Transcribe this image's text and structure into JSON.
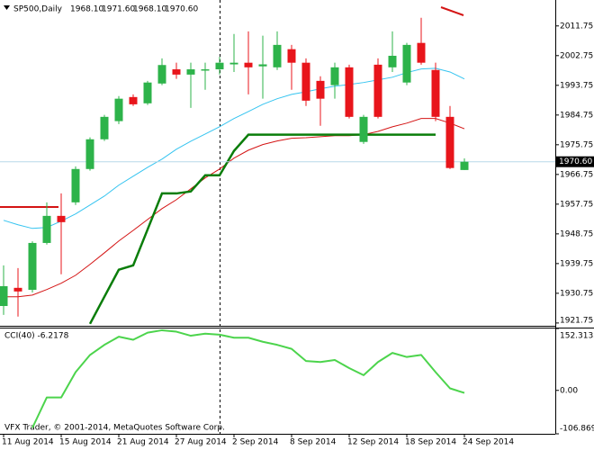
{
  "chart_data": [
    {
      "type": "candlestick",
      "title": "SP500,Daily",
      "ohlc_labels": [
        "1968.10",
        "1971.60",
        "1968.10",
        "1970.60"
      ],
      "categories": [
        "11 Aug 2014",
        null,
        null,
        null,
        "15 Aug 2014",
        null,
        null,
        null,
        "21 Aug 2014",
        null,
        null,
        null,
        "27 Aug 2014",
        null,
        null,
        null,
        "2 Sep 2014",
        null,
        null,
        null,
        "8 Sep 2014",
        null,
        null,
        null,
        "12 Sep 2014",
        null,
        null,
        null,
        "18 Sep 2014",
        null,
        null,
        null,
        "24 Sep 2014"
      ],
      "open": [
        1926.9,
        1932.4,
        1931.8,
        1946.0,
        1954.2,
        1958.3,
        1968.4,
        1977.4,
        1982.9,
        1990.2,
        1988.3,
        1994.3,
        1998.6,
        1997.0,
        1998.2,
        1998.6,
        2000.1,
        2000.6,
        1999.5,
        1999.2,
        2004.7,
        2000.6,
        1995.1,
        1993.8,
        1999.2,
        1976.6,
        2000.0,
        1999.2,
        1994.6,
        2006.6,
        1998.4,
        1984.2,
        1968.1
      ],
      "high": [
        1939.2,
        1938.4,
        1946.5,
        1958.3,
        1961.0,
        1969.2,
        1978.0,
        1984.8,
        1990.5,
        1991.0,
        1995.1,
        2001.9,
        2000.6,
        2000.6,
        2000.6,
        2002.4,
        2009.3,
        2010.1,
        2008.8,
        2010.1,
        2006.0,
        2001.9,
        1996.5,
        2000.6,
        2000.0,
        1984.8,
        2001.9,
        2010.1,
        2006.6,
        2014.2,
        2000.6,
        1987.5,
        1971.6
      ],
      "low": [
        1924.2,
        1923.7,
        1931.0,
        1945.5,
        1936.5,
        1957.5,
        1967.9,
        1976.9,
        1982.0,
        1987.5,
        1987.8,
        1993.8,
        1995.7,
        1986.9,
        1992.4,
        1997.0,
        1997.8,
        1991.0,
        1989.7,
        1998.4,
        1992.4,
        1987.5,
        1981.5,
        1989.7,
        1983.7,
        1976.0,
        1983.7,
        1997.8,
        1993.8,
        2000.0,
        1982.9,
        1968.4,
        1968.1
      ],
      "close": [
        1932.9,
        1931.3,
        1946.0,
        1954.2,
        1952.3,
        1968.4,
        1977.4,
        1984.2,
        1989.7,
        1988.0,
        1994.6,
        1999.9,
        1997.0,
        1998.6,
        1998.6,
        2000.6,
        2000.6,
        1999.2,
        2000.1,
        2006.0,
        2000.6,
        1989.1,
        1989.7,
        1999.2,
        1984.2,
        1984.2,
        1984.2,
        2002.7,
        2006.0,
        2000.6,
        1984.2,
        1968.7,
        1970.6
      ],
      "up_color": "#2db34a",
      "down_color": "#e8151b",
      "overlays": [
        {
          "color": "#35c4f0",
          "width": 1,
          "values": [
            1952.85,
            1951.5,
            1950.4,
            1950.7,
            1952.6,
            1954.8,
            1957.5,
            1960.2,
            1963.5,
            1966.2,
            1968.9,
            1971.4,
            1974.4,
            1976.8,
            1979.0,
            1981.2,
            1983.7,
            1985.8,
            1988.0,
            1989.7,
            1991.0,
            1991.8,
            1992.7,
            1993.5,
            1994.0,
            1994.6,
            1995.4,
            1996.2,
            1997.6,
            1998.7,
            1998.9,
            1997.8,
            1995.7
          ]
        },
        {
          "color": "#d41414",
          "width": 1,
          "values": [
            1929.7,
            1929.7,
            1930.2,
            1931.9,
            1933.8,
            1936.2,
            1939.5,
            1943.0,
            1946.6,
            1949.8,
            1953.1,
            1956.4,
            1959.1,
            1962.4,
            1965.7,
            1968.4,
            1971.7,
            1974.1,
            1975.8,
            1976.9,
            1977.7,
            1977.9,
            1978.2,
            1978.5,
            1978.5,
            1978.8,
            1979.8,
            1981.2,
            1982.3,
            1983.7,
            1983.7,
            1982.3,
            1980.6
          ]
        },
        {
          "color": "#0a7d0a",
          "width": 2.5,
          "values": [
            null,
            null,
            null,
            null,
            null,
            null,
            1921.5,
            1929.7,
            1937.9,
            1939.2,
            1950.1,
            1961.0,
            1961.0,
            1961.6,
            1966.5,
            1966.5,
            1973.9,
            1978.8,
            1978.8,
            1978.8,
            1978.8,
            1978.8,
            1978.8,
            1978.8,
            1978.8,
            1978.8,
            1978.8,
            1978.8,
            1978.8,
            1978.8,
            1978.8,
            null,
            null
          ]
        }
      ],
      "last_price": {
        "value": 1970.6,
        "label": "1970.60"
      },
      "ylim": [
        1920.9,
        2019.6
      ],
      "yticks": [
        1921.75,
        1930.75,
        1939.75,
        1948.75,
        1957.75,
        1966.75,
        1975.75,
        1984.75,
        1993.75,
        2002.75,
        2011.75
      ],
      "grid": false,
      "footer": "VFX Trader, © 2001-2014, MetaQuotes Software Corp."
    },
    {
      "type": "line",
      "title": "CCI(40) -6.2178",
      "color": "#4cd44c",
      "values": [
        null,
        null,
        -92.2,
        -17.4,
        -17.4,
        44.9,
        87.2,
        112.1,
        132.1,
        124.6,
        142.0,
        148.0,
        144.5,
        134.5,
        139.5,
        137.1,
        129.6,
        129.6,
        119.6,
        112.1,
        102.2,
        72.3,
        69.8,
        74.8,
        54.8,
        37.4,
        69.8,
        92.2,
        82.2,
        87.2,
        44.9,
        5.0,
        -6.2178
      ],
      "ylim": [
        -106.8697,
        152.3133
      ],
      "yticks": [
        -106.8697,
        {
          "value": 0,
          "label": "0.00"
        },
        152.3133
      ]
    }
  ]
}
